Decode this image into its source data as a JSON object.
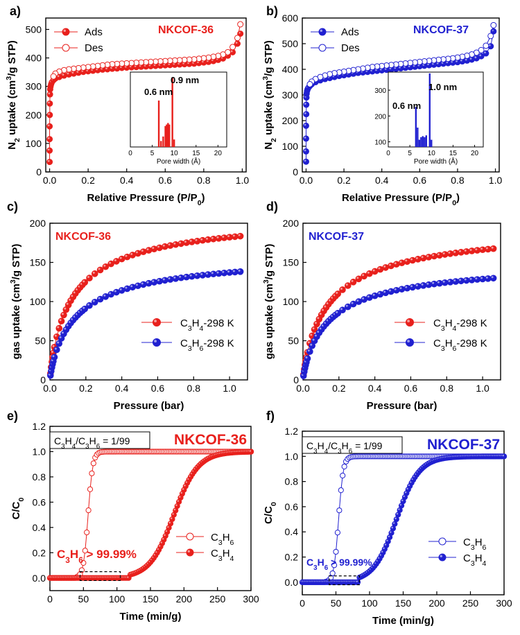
{
  "colors": {
    "red": "#e8201c",
    "blue": "#2020d0",
    "black": "#000000"
  },
  "chart_data": [
    {
      "panel": "a)",
      "type": "line",
      "title": "NKCOF-36",
      "title_color": "red",
      "xlabel": "Relative Pressure (P/P0)",
      "xlabel_main": "Relative Pressure (P/P",
      "xlabel_sub": "0",
      "xlabel_tail": ")",
      "ylabel": "N2 uptake (cm3/g STP)",
      "ylabel_parts": [
        "N",
        "2",
        " uptake (cm",
        "3",
        "/g STP)"
      ],
      "xlim": [
        -0.02,
        1.02
      ],
      "ylim": [
        0,
        540
      ],
      "xticks": [
        "0.0",
        "0.2",
        "0.4",
        "0.6",
        "0.8",
        "1.0"
      ],
      "xtick_vals": [
        0,
        0.2,
        0.4,
        0.6,
        0.8,
        1.0
      ],
      "yticks": [
        "0",
        "100",
        "200",
        "300",
        "400",
        "500"
      ],
      "ytick_vals": [
        0,
        100,
        200,
        300,
        400,
        500
      ],
      "legend": [
        "Ads",
        "Des"
      ],
      "series": [
        {
          "name": "Ads",
          "color": "red",
          "filled": true,
          "x": [
            0.0,
            0.0,
            0.0,
            0.0,
            0.001,
            0.001,
            0.002,
            0.003,
            0.005,
            0.008,
            0.012,
            0.02,
            0.03,
            0.05,
            0.075,
            0.1,
            0.125,
            0.15,
            0.175,
            0.2,
            0.225,
            0.25,
            0.275,
            0.3,
            0.325,
            0.35,
            0.375,
            0.4,
            0.425,
            0.45,
            0.475,
            0.5,
            0.525,
            0.55,
            0.575,
            0.6,
            0.625,
            0.65,
            0.675,
            0.7,
            0.725,
            0.75,
            0.775,
            0.8,
            0.825,
            0.85,
            0.875,
            0.9,
            0.925,
            0.95,
            0.975,
            0.99
          ],
          "y": [
            35,
            75,
            115,
            160,
            200,
            240,
            272,
            290,
            300,
            308,
            315,
            322,
            328,
            333,
            338,
            342,
            345,
            348,
            351,
            353,
            355,
            357,
            359,
            360,
            362,
            363,
            365,
            366,
            367,
            368,
            369,
            370,
            371,
            372,
            373,
            374,
            375,
            376,
            377,
            378,
            379,
            380,
            382,
            384,
            386,
            389,
            393,
            398,
            408,
            420,
            450,
            485
          ]
        },
        {
          "name": "Des",
          "color": "red",
          "filled": false,
          "x": [
            0.99,
            0.975,
            0.95,
            0.925,
            0.9,
            0.875,
            0.85,
            0.825,
            0.8,
            0.775,
            0.75,
            0.725,
            0.7,
            0.675,
            0.65,
            0.625,
            0.6,
            0.575,
            0.55,
            0.525,
            0.5,
            0.475,
            0.45,
            0.425,
            0.4,
            0.375,
            0.35,
            0.325,
            0.3,
            0.275,
            0.25,
            0.225,
            0.2,
            0.175,
            0.15,
            0.125,
            0.1,
            0.075,
            0.05,
            0.03,
            0.02
          ],
          "y": [
            518,
            470,
            438,
            420,
            412,
            407,
            404,
            401,
            399,
            397,
            395,
            394,
            393,
            392,
            391,
            390,
            389,
            388,
            387,
            386,
            385,
            384,
            383,
            382,
            381,
            380,
            379,
            378,
            376,
            374,
            372,
            370,
            368,
            366,
            364,
            362,
            360,
            357,
            352,
            345,
            335
          ]
        }
      ],
      "inset": {
        "xlabel": "Pore width (Å)",
        "xlim": [
          0,
          22
        ],
        "xticks": [
          "0",
          "5",
          "10",
          "15",
          "20"
        ],
        "xtick_vals": [
          0,
          5,
          10,
          15,
          20
        ],
        "color": "red",
        "bars": [
          {
            "x": 6.5,
            "h": 0.62
          },
          {
            "x": 7.0,
            "h": 0.08
          },
          {
            "x": 7.5,
            "h": 0.14
          },
          {
            "x": 8.0,
            "h": 0.28
          },
          {
            "x": 8.3,
            "h": 0.3
          },
          {
            "x": 8.6,
            "h": 0.32
          },
          {
            "x": 8.9,
            "h": 0.3
          },
          {
            "x": 9.6,
            "h": 0.93
          },
          {
            "x": 10.0,
            "h": 0.1
          }
        ],
        "labels": [
          "0.6 nm",
          "0.9 nm"
        ]
      }
    },
    {
      "panel": "b)",
      "type": "line",
      "title": "NKCOF-37",
      "title_color": "blue",
      "xlabel": "Relative Pressure (P/P0)",
      "xlabel_main": "Relative Pressure (P/P",
      "xlabel_sub": "0",
      "xlabel_tail": ")",
      "ylabel": "N2 uptake (cm3/g STP)",
      "ylabel_parts": [
        "N",
        "2",
        " uptake (cm",
        "3",
        "/g STP)"
      ],
      "xlim": [
        -0.02,
        1.02
      ],
      "ylim": [
        0,
        600
      ],
      "xticks": [
        "0.0",
        "0.2",
        "0.4",
        "0.6",
        "0.8",
        "1.0"
      ],
      "xtick_vals": [
        0,
        0.2,
        0.4,
        0.6,
        0.8,
        1.0
      ],
      "yticks": [
        "0",
        "100",
        "200",
        "300",
        "400",
        "500",
        "600"
      ],
      "ytick_vals": [
        0,
        100,
        200,
        300,
        400,
        500,
        600
      ],
      "legend": [
        "Ads",
        "Des"
      ],
      "series": [
        {
          "name": "Ads",
          "color": "blue",
          "filled": true,
          "x": [
            0.0,
            0.0,
            0.0,
            0.0,
            0.001,
            0.001,
            0.002,
            0.003,
            0.005,
            0.008,
            0.012,
            0.02,
            0.03,
            0.05,
            0.075,
            0.1,
            0.125,
            0.15,
            0.175,
            0.2,
            0.225,
            0.25,
            0.275,
            0.3,
            0.325,
            0.35,
            0.375,
            0.4,
            0.425,
            0.45,
            0.475,
            0.5,
            0.525,
            0.55,
            0.575,
            0.6,
            0.625,
            0.65,
            0.675,
            0.7,
            0.725,
            0.75,
            0.775,
            0.8,
            0.825,
            0.85,
            0.875,
            0.9,
            0.925,
            0.95,
            0.975,
            0.99
          ],
          "y": [
            40,
            80,
            130,
            180,
            225,
            262,
            290,
            305,
            315,
            322,
            328,
            335,
            342,
            350,
            357,
            362,
            366,
            370,
            374,
            377,
            380,
            383,
            386,
            388,
            390,
            392,
            394,
            396,
            398,
            400,
            402,
            404,
            406,
            408,
            410,
            412,
            414,
            416,
            418,
            420,
            422,
            424,
            426,
            428,
            431,
            434,
            438,
            443,
            451,
            462,
            490,
            548
          ]
        },
        {
          "name": "Des",
          "color": "blue",
          "filled": false,
          "x": [
            0.99,
            0.975,
            0.95,
            0.925,
            0.9,
            0.875,
            0.85,
            0.825,
            0.8,
            0.775,
            0.75,
            0.725,
            0.7,
            0.675,
            0.65,
            0.625,
            0.6,
            0.575,
            0.55,
            0.525,
            0.5,
            0.475,
            0.45,
            0.425,
            0.4,
            0.375,
            0.35,
            0.325,
            0.3,
            0.275,
            0.25,
            0.225,
            0.2,
            0.175,
            0.15,
            0.125,
            0.1,
            0.075,
            0.05,
            0.03,
            0.02
          ],
          "y": [
            572,
            530,
            492,
            475,
            465,
            458,
            453,
            449,
            446,
            443,
            441,
            439,
            437,
            435,
            433,
            431,
            429,
            427,
            425,
            423,
            421,
            419,
            417,
            415,
            413,
            411,
            409,
            406,
            403,
            400,
            397,
            394,
            391,
            388,
            385,
            381,
            376,
            370,
            362,
            352,
            342
          ]
        }
      ],
      "inset": {
        "xlabel": "Pore width (Å)",
        "xlim": [
          0,
          22
        ],
        "xticks": [
          "0",
          "5",
          "10",
          "15",
          "20"
        ],
        "xtick_vals": [
          0,
          5,
          10,
          15,
          20
        ],
        "yticks": [
          "100",
          "200",
          "300"
        ],
        "ytick_vals": [
          100,
          200,
          300
        ],
        "ylim": [
          80,
          370
        ],
        "color": "blue",
        "bars": [
          {
            "x": 6.4,
            "v": 235
          },
          {
            "x": 6.8,
            "v": 155
          },
          {
            "x": 7.2,
            "v": 108
          },
          {
            "x": 7.6,
            "v": 118
          },
          {
            "x": 8.0,
            "v": 122
          },
          {
            "x": 8.4,
            "v": 118
          },
          {
            "x": 8.8,
            "v": 125
          },
          {
            "x": 9.6,
            "v": 365
          },
          {
            "x": 10.0,
            "v": 108
          }
        ],
        "labels": [
          "0.6 nm",
          "1.0 nm"
        ]
      }
    },
    {
      "panel": "c)",
      "type": "scatter",
      "title": "NKCOF-36",
      "title_color": "red",
      "xlabel": "Pressure (bar)",
      "ylabel": "gas uptake (cm3/g STP)",
      "ylabel_parts": [
        "gas uptake (cm",
        "3",
        "/g STP)"
      ],
      "xlim": [
        0,
        1.1
      ],
      "ylim": [
        0,
        200
      ],
      "xticks": [
        "0.0",
        "0.2",
        "0.4",
        "0.6",
        "0.8",
        "1.0"
      ],
      "xtick_vals": [
        0,
        0.2,
        0.4,
        0.6,
        0.8,
        1.0
      ],
      "yticks": [
        "0",
        "50",
        "100",
        "150",
        "200"
      ],
      "ytick_vals": [
        0,
        50,
        100,
        150,
        200
      ],
      "legend": [
        "C3H4-298 K",
        "C3H6-298 K"
      ],
      "series": [
        {
          "name": "C3H4-298 K",
          "color": "red",
          "qmax": 215,
          "b": 7.5,
          "n": 0.85,
          "xmax": 1.08
        },
        {
          "name": "C3H6-298 K",
          "color": "blue",
          "qmax": 165,
          "b": 6.5,
          "n": 0.85,
          "xmax": 1.08
        }
      ]
    },
    {
      "panel": "d)",
      "type": "scatter",
      "title": "NKCOF-37",
      "title_color": "blue",
      "xlabel": "Pressure (bar)",
      "ylabel": "gas uptake (cm3/g STP)",
      "ylabel_parts": [
        "gas uptake (cm",
        "3",
        "/g STP)"
      ],
      "xlim": [
        0,
        1.1
      ],
      "ylim": [
        0,
        200
      ],
      "xticks": [
        "0.0",
        "0.2",
        "0.4",
        "0.6",
        "0.8",
        "1.0"
      ],
      "xtick_vals": [
        0,
        0.2,
        0.4,
        0.6,
        0.8,
        1.0
      ],
      "yticks": [
        "0",
        "50",
        "100",
        "150",
        "200"
      ],
      "ytick_vals": [
        0,
        50,
        100,
        150,
        200
      ],
      "legend": [
        "C3H4-298 K",
        "C3H6-298 K"
      ],
      "series": [
        {
          "name": "C3H4-298 K",
          "color": "red",
          "qmax": 200,
          "b": 6.5,
          "n": 0.85,
          "xmax": 1.08
        },
        {
          "name": "C3H6-298 K",
          "color": "blue",
          "qmax": 155,
          "b": 6.5,
          "n": 0.85,
          "xmax": 1.08
        }
      ]
    },
    {
      "panel": "e)",
      "type": "scatter",
      "title": "NKCOF-36",
      "title_color": "red",
      "box_label": "C3H4/C3H6 = 1/99",
      "annotation": "C3H6 > 99.99%",
      "xlabel": "Time (min/g)",
      "ylabel": "C/C0",
      "xlim": [
        0,
        300
      ],
      "ylim": [
        -0.1,
        1.2
      ],
      "xticks": [
        "0",
        "50",
        "100",
        "150",
        "200",
        "250",
        "300"
      ],
      "xtick_vals": [
        0,
        50,
        100,
        150,
        200,
        250,
        300
      ],
      "yticks": [
        "0.0",
        "0.2",
        "0.4",
        "0.6",
        "0.8",
        "1.0",
        "1.2"
      ],
      "ytick_vals": [
        0,
        0.2,
        0.4,
        0.6,
        0.8,
        1.0,
        1.2
      ],
      "legend": [
        "C3H6",
        "C3H4"
      ],
      "series": [
        {
          "name": "C3H6",
          "color": "red",
          "filled": false,
          "t_start": 50,
          "t_end": 75,
          "t_mid": 57,
          "width": 3.5,
          "step": 2.5
        },
        {
          "name": "C3H4",
          "color": "red",
          "filled": true,
          "t_start": 130,
          "t_end": 270,
          "t_mid": 185,
          "width": 18,
          "step": 2.5
        }
      ],
      "zoom_box": [
        45,
        105,
        -0.02,
        0.05
      ]
    },
    {
      "panel": "f)",
      "type": "scatter",
      "title": "NKCOF-37",
      "title_color": "blue",
      "box_label": "C3H4/C3H6 = 1/99",
      "annotation": "C3H6 > 99.99%",
      "xlabel": "Time (min/g)",
      "ylabel": "C/C0",
      "xlim": [
        0,
        300
      ],
      "ylim": [
        -0.1,
        1.2
      ],
      "xticks": [
        "0",
        "50",
        "100",
        "150",
        "200",
        "250",
        "300"
      ],
      "xtick_vals": [
        0,
        50,
        100,
        150,
        200,
        250,
        300
      ],
      "yticks": [
        "0.0",
        "0.2",
        "0.4",
        "0.6",
        "0.8",
        "1.0",
        "1.2"
      ],
      "ytick_vals": [
        0,
        0.2,
        0.4,
        0.6,
        0.8,
        1.0,
        1.2
      ],
      "legend": [
        "C3H6",
        "C3H4"
      ],
      "series": [
        {
          "name": "C3H6",
          "color": "blue",
          "filled": false,
          "t_start": 45,
          "t_end": 75,
          "t_mid": 54,
          "width": 3.5,
          "step": 2.5
        },
        {
          "name": "C3H4",
          "color": "blue",
          "filled": true,
          "t_start": 95,
          "t_end": 250,
          "t_mid": 140,
          "width": 17,
          "step": 2.5
        }
      ],
      "zoom_box": [
        40,
        85,
        -0.02,
        0.05
      ]
    }
  ]
}
